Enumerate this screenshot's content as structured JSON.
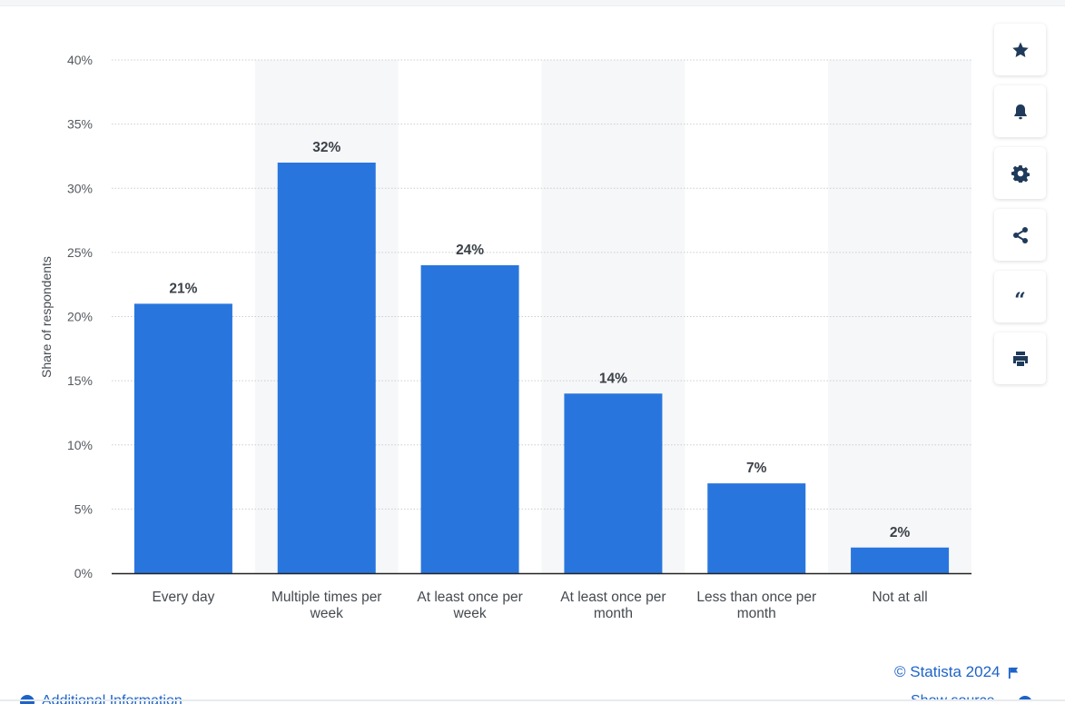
{
  "chart_data": {
    "type": "bar",
    "categories": [
      [
        "Every day"
      ],
      [
        "Multiple times per",
        "week"
      ],
      [
        "At least once per",
        "week"
      ],
      [
        "At least once per",
        "month"
      ],
      [
        "Less than once per",
        "month"
      ],
      [
        "Not at all"
      ]
    ],
    "values": [
      21,
      32,
      24,
      14,
      7,
      2
    ],
    "value_labels": [
      "21%",
      "32%",
      "24%",
      "14%",
      "7%",
      "2%"
    ],
    "ylabel": "Share of respondents",
    "ylim": [
      0,
      40
    ],
    "yticks": [
      0,
      5,
      10,
      15,
      20,
      25,
      30,
      35,
      40
    ],
    "ytick_labels": [
      "0%",
      "5%",
      "10%",
      "15%",
      "20%",
      "25%",
      "30%",
      "35%",
      "40%"
    ],
    "grid": true,
    "bar_color": "#2876dd",
    "alt_band_color": "#f6f7f9"
  },
  "toolbar": {
    "buttons": [
      {
        "name": "favorite-button",
        "icon": "star-icon"
      },
      {
        "name": "notification-button",
        "icon": "bell-icon"
      },
      {
        "name": "settings-button",
        "icon": "gear-icon"
      },
      {
        "name": "share-button",
        "icon": "share-icon"
      },
      {
        "name": "cite-button",
        "icon": "quote-icon"
      },
      {
        "name": "print-button",
        "icon": "printer-icon"
      }
    ]
  },
  "credit": {
    "text": "© Statista 2024",
    "icon": "flag-icon"
  },
  "footer": {
    "additional_info": "Additional Information",
    "show_source": "Show source"
  }
}
